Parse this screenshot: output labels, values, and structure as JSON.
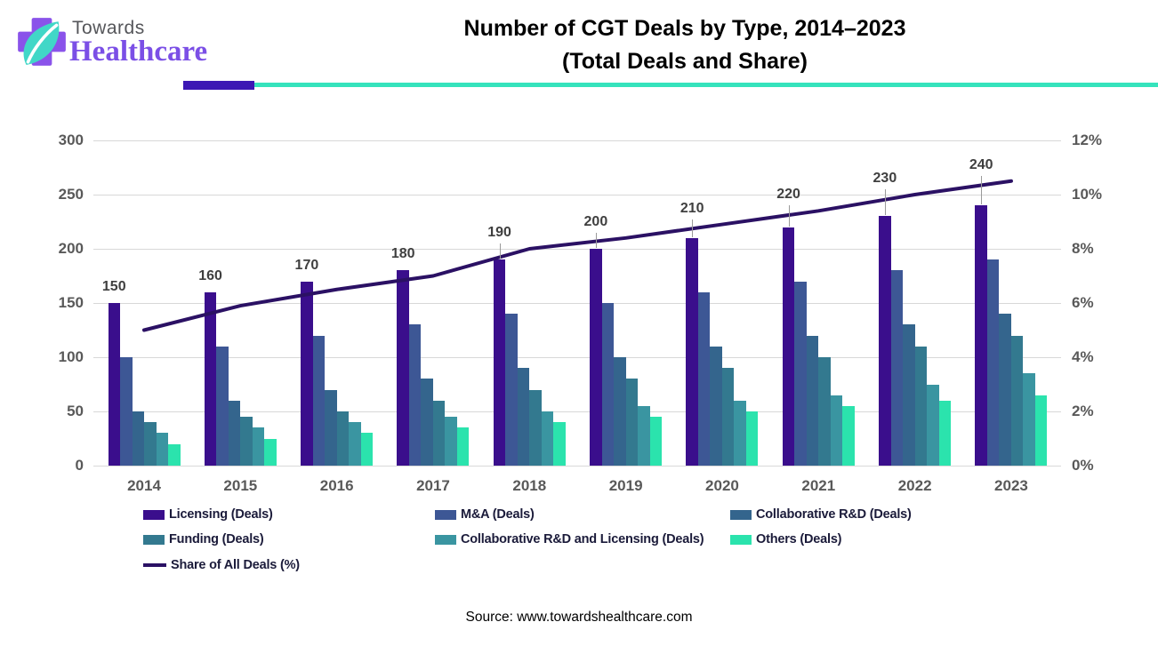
{
  "header": {
    "logo_text_top": "Towards",
    "logo_text_bottom": "Healthcare",
    "title_line1": "Number of CGT Deals by Type, 2014–2023",
    "title_line2": "(Total Deals and Share)"
  },
  "chart_data": {
    "type": "bar+line",
    "title": "Number of CGT Deals by Type, 2014–2023 (Total Deals and Share)",
    "categories": [
      "2014",
      "2015",
      "2016",
      "2017",
      "2018",
      "2019",
      "2020",
      "2021",
      "2022",
      "2023"
    ],
    "left_axis": {
      "min": 0,
      "max": 300,
      "ticks": [
        "0",
        "50",
        "100",
        "150",
        "200",
        "250",
        "300"
      ]
    },
    "right_axis": {
      "min": 0,
      "max": 12,
      "ticks": [
        "0%",
        "2%",
        "4%",
        "6%",
        "8%",
        "10%",
        "12%"
      ]
    },
    "grid": true,
    "legend_position": "bottom",
    "series": [
      {
        "name": "Licensing (Deals)",
        "color": "#3A0E8C",
        "show_value_labels": true,
        "values": [
          150,
          160,
          170,
          180,
          190,
          200,
          210,
          220,
          230,
          240
        ]
      },
      {
        "name": "M&A (Deals)",
        "color": "#3D5795",
        "values": [
          100,
          110,
          120,
          130,
          140,
          150,
          160,
          170,
          180,
          190
        ]
      },
      {
        "name": "Collaborative R&D (Deals)",
        "color": "#34658D",
        "values": [
          50,
          60,
          70,
          80,
          90,
          100,
          110,
          120,
          130,
          140
        ]
      },
      {
        "name": "Funding (Deals)",
        "color": "#33798F",
        "values": [
          40,
          45,
          50,
          60,
          70,
          80,
          90,
          100,
          110,
          120
        ]
      },
      {
        "name": "Collaborative R&D and Licensing (Deals)",
        "color": "#3A95A1",
        "values": [
          30,
          35,
          40,
          45,
          50,
          55,
          60,
          65,
          75,
          85
        ]
      },
      {
        "name": "Others (Deals)",
        "color": "#2BE3AD",
        "values": [
          20,
          25,
          30,
          35,
          40,
          45,
          50,
          55,
          60,
          65
        ]
      }
    ],
    "line_series": {
      "name": "Share of All Deals (%)",
      "color": "#2B1164",
      "axis": "right",
      "values": [
        5.0,
        5.9,
        6.5,
        7.0,
        8.0,
        8.4,
        8.9,
        9.4,
        10.0,
        10.5
      ]
    }
  },
  "legend": {
    "items": [
      {
        "label": "Licensing (Deals)",
        "color": "#3A0E8C",
        "shape": "rect"
      },
      {
        "label": "M&A (Deals)",
        "color": "#3D5795",
        "shape": "rect"
      },
      {
        "label": "Collaborative R&D (Deals)",
        "color": "#34658D",
        "shape": "rect"
      },
      {
        "label": "Funding (Deals)",
        "color": "#33798F",
        "shape": "rect"
      },
      {
        "label": "Collaborative R&D and Licensing (Deals)",
        "color": "#3A95A1",
        "shape": "rect"
      },
      {
        "label": "Others (Deals)",
        "color": "#2BE3AD",
        "shape": "rect"
      },
      {
        "label": "Share of All Deals (%)",
        "color": "#2B1164",
        "shape": "line"
      }
    ]
  },
  "source": "Source: www.towardshealthcare.com",
  "accent_colors": {
    "rule_purple": "#3C18B4",
    "rule_teal": "#35E3BC",
    "logo_purple": "#8A53EA",
    "logo_teal": "#41D7C7"
  }
}
